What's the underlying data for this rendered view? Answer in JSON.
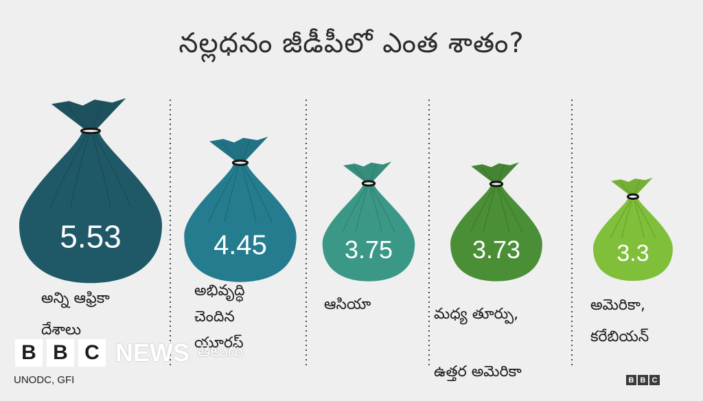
{
  "title": "నల్లధనం జీడీపీలో ఎంత శాతం?",
  "chart_data": {
    "type": "bar",
    "title": "నల్లధనం జీడీపీలో ఎంత శాతం?",
    "categories": [
      [
        "అన్ని ఆఫ్రికా",
        "దేశాలు"
      ],
      [
        "అభివృద్ధి",
        "చెందిన",
        "యూరప్"
      ],
      [
        "ఆసియా"
      ],
      [
        "మధ్య తూర్పు,",
        "ఉత్తర అమెరికా"
      ],
      [
        "అమెరికా,",
        "కరేబియన్"
      ]
    ],
    "values": [
      5.53,
      4.45,
      3.75,
      3.73,
      3.3
    ],
    "value_labels": [
      "5.53",
      "4.45",
      "3.75",
      "3.73",
      "3.3"
    ],
    "colors": [
      "#1f5866",
      "#247c8e",
      "#3c9886",
      "#4a8f36",
      "#7fbf3a"
    ],
    "separator": "dotted",
    "legend": "none",
    "grid": false
  },
  "source": "UNODC, GFI",
  "branding": {
    "letters": [
      "B",
      "B",
      "C"
    ],
    "news": "NEWS",
    "language": "తెలుగు"
  }
}
